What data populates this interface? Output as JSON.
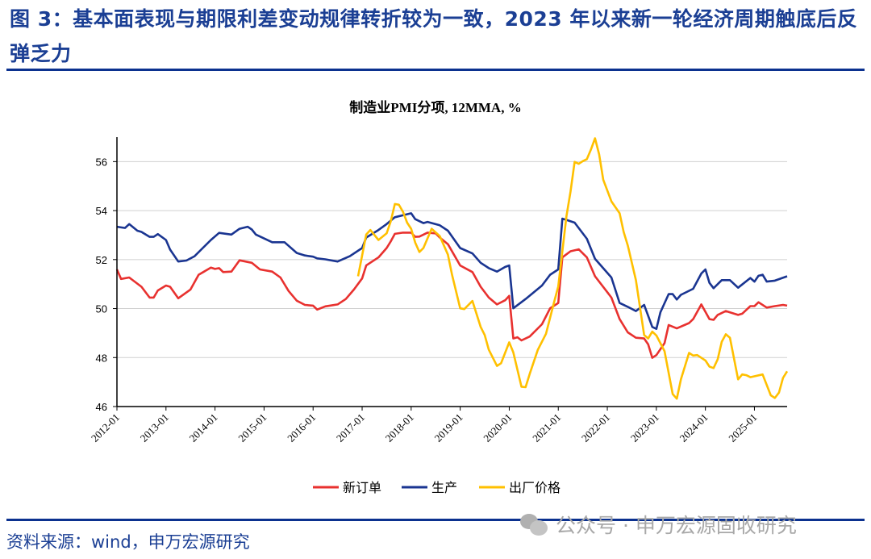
{
  "header": {
    "title": "图  3：基本面表现与期限利差变动规律转折较为一致，2023 年以来新一轮经济周期触底后反弹乏力"
  },
  "footer": {
    "source": "资料来源：wind，申万宏源研究",
    "watermark": "公众号 · 申万宏源固收研究"
  },
  "colors": {
    "title": "#1b3f94",
    "new_orders": "#e8312f",
    "production": "#1a3591",
    "ex_factory_price": "#ffc000"
  },
  "chart_data": {
    "type": "line",
    "title": "制造业PMI分项, 12MMA, %",
    "xlabel": "",
    "ylabel": "",
    "ylim": [
      46,
      57
    ],
    "yticks": [
      46,
      48,
      50,
      52,
      54,
      56
    ],
    "xlim": [
      "2012-01",
      "2025-09"
    ],
    "xticks": [
      "2012-01",
      "2013-01",
      "2014-01",
      "2015-01",
      "2016-01",
      "2017-01",
      "2018-01",
      "2019-01",
      "2020-01",
      "2021-01",
      "2022-01",
      "2023-01",
      "2024-01",
      "2025-01"
    ],
    "grid": "horizontal",
    "legend_position": "bottom",
    "series": [
      {
        "name": "新订单",
        "color": "#e8312f",
        "points": [
          [
            "2012-01",
            51.6
          ],
          [
            "2012-02",
            51.21
          ],
          [
            "2012-04",
            51.27
          ],
          [
            "2012-07",
            50.89
          ],
          [
            "2012-09",
            50.45
          ],
          [
            "2012-10",
            50.45
          ],
          [
            "2012-11",
            50.74
          ],
          [
            "2013-01",
            50.94
          ],
          [
            "2013-02",
            50.89
          ],
          [
            "2013-04",
            50.42
          ],
          [
            "2013-07",
            50.78
          ],
          [
            "2013-09",
            51.38
          ],
          [
            "2013-12",
            51.67
          ],
          [
            "2014-01",
            51.62
          ],
          [
            "2014-02",
            51.65
          ],
          [
            "2014-03",
            51.49
          ],
          [
            "2014-05",
            51.51
          ],
          [
            "2014-07",
            51.97
          ],
          [
            "2014-10",
            51.87
          ],
          [
            "2014-12",
            51.6
          ],
          [
            "2015-03",
            51.51
          ],
          [
            "2015-05",
            51.27
          ],
          [
            "2015-07",
            50.72
          ],
          [
            "2015-09",
            50.32
          ],
          [
            "2015-11",
            50.15
          ],
          [
            "2016-01",
            50.12
          ],
          [
            "2016-02",
            49.96
          ],
          [
            "2016-04",
            50.09
          ],
          [
            "2016-07",
            50.17
          ],
          [
            "2016-09",
            50.39
          ],
          [
            "2016-11",
            50.78
          ],
          [
            "2017-01",
            51.23
          ],
          [
            "2017-02",
            51.76
          ],
          [
            "2017-05",
            52.09
          ],
          [
            "2017-07",
            52.47
          ],
          [
            "2017-08",
            52.74
          ],
          [
            "2017-09",
            53.05
          ],
          [
            "2017-11",
            53.1
          ],
          [
            "2018-01",
            53.1
          ],
          [
            "2018-02",
            52.93
          ],
          [
            "2018-03",
            52.94
          ],
          [
            "2018-05",
            53.1
          ],
          [
            "2018-07",
            53.07
          ],
          [
            "2018-08",
            52.9
          ],
          [
            "2018-10",
            52.63
          ],
          [
            "2019-01",
            51.76
          ],
          [
            "2019-04",
            51.49
          ],
          [
            "2019-06",
            50.89
          ],
          [
            "2019-08",
            50.45
          ],
          [
            "2019-10",
            50.17
          ],
          [
            "2019-12",
            50.34
          ],
          [
            "2020-01",
            50.52
          ],
          [
            "2020-02",
            48.78
          ],
          [
            "2020-03",
            48.83
          ],
          [
            "2020-04",
            48.7
          ],
          [
            "2020-06",
            48.86
          ],
          [
            "2020-09",
            49.36
          ],
          [
            "2020-11",
            50.01
          ],
          [
            "2021-01",
            50.23
          ],
          [
            "2021-02",
            52.09
          ],
          [
            "2021-04",
            52.34
          ],
          [
            "2021-06",
            52.42
          ],
          [
            "2021-08",
            52.09
          ],
          [
            "2021-10",
            51.32
          ],
          [
            "2022-01",
            50.67
          ],
          [
            "2022-02",
            50.45
          ],
          [
            "2022-04",
            49.57
          ],
          [
            "2022-06",
            49.03
          ],
          [
            "2022-08",
            48.81
          ],
          [
            "2022-10",
            48.78
          ],
          [
            "2022-11",
            48.54
          ],
          [
            "2022-12",
            47.99
          ],
          [
            "2023-01",
            48.1
          ],
          [
            "2023-03",
            48.59
          ],
          [
            "2023-04",
            49.33
          ],
          [
            "2023-06",
            49.19
          ],
          [
            "2023-09",
            49.41
          ],
          [
            "2023-10",
            49.57
          ],
          [
            "2023-12",
            50.17
          ],
          [
            "2024-02",
            49.57
          ],
          [
            "2024-03",
            49.54
          ],
          [
            "2024-04",
            49.74
          ],
          [
            "2024-06",
            49.9
          ],
          [
            "2024-09",
            49.74
          ],
          [
            "2024-10",
            49.79
          ],
          [
            "2024-12",
            50.1
          ],
          [
            "2025-01",
            50.1
          ],
          [
            "2025-02",
            50.26
          ],
          [
            "2025-04",
            50.04
          ],
          [
            "2025-06",
            50.1
          ],
          [
            "2025-08",
            50.15
          ],
          [
            "2025-09",
            50.12
          ]
        ]
      },
      {
        "name": "生产",
        "color": "#1a3591",
        "points": [
          [
            "2012-01",
            53.34
          ],
          [
            "2012-03",
            53.29
          ],
          [
            "2012-04",
            53.45
          ],
          [
            "2012-06",
            53.18
          ],
          [
            "2012-07",
            53.13
          ],
          [
            "2012-09",
            52.93
          ],
          [
            "2012-10",
            52.93
          ],
          [
            "2012-11",
            53.04
          ],
          [
            "2013-01",
            52.8
          ],
          [
            "2013-02",
            52.41
          ],
          [
            "2013-04",
            51.92
          ],
          [
            "2013-06",
            51.96
          ],
          [
            "2013-08",
            52.14
          ],
          [
            "2013-10",
            52.47
          ],
          [
            "2013-12",
            52.8
          ],
          [
            "2014-02",
            53.09
          ],
          [
            "2014-05",
            53.02
          ],
          [
            "2014-07",
            53.26
          ],
          [
            "2014-09",
            53.34
          ],
          [
            "2014-10",
            53.23
          ],
          [
            "2014-11",
            53.02
          ],
          [
            "2015-03",
            52.71
          ],
          [
            "2015-06",
            52.71
          ],
          [
            "2015-09",
            52.27
          ],
          [
            "2015-11",
            52.17
          ],
          [
            "2016-01",
            52.12
          ],
          [
            "2016-02",
            52.05
          ],
          [
            "2016-04",
            52.01
          ],
          [
            "2016-07",
            51.92
          ],
          [
            "2016-10",
            52.14
          ],
          [
            "2017-01",
            52.47
          ],
          [
            "2017-02",
            52.9
          ],
          [
            "2017-05",
            53.21
          ],
          [
            "2017-07",
            53.45
          ],
          [
            "2017-09",
            53.73
          ],
          [
            "2018-01",
            53.89
          ],
          [
            "2018-02",
            53.65
          ],
          [
            "2018-04",
            53.49
          ],
          [
            "2018-05",
            53.54
          ],
          [
            "2018-08",
            53.4
          ],
          [
            "2018-10",
            53.18
          ],
          [
            "2019-01",
            52.47
          ],
          [
            "2019-04",
            52.25
          ],
          [
            "2019-06",
            51.87
          ],
          [
            "2019-08",
            51.65
          ],
          [
            "2019-10",
            51.51
          ],
          [
            "2019-12",
            51.7
          ],
          [
            "2020-01",
            51.76
          ],
          [
            "2020-02",
            50.01
          ],
          [
            "2020-05",
            50.39
          ],
          [
            "2020-09",
            50.94
          ],
          [
            "2020-11",
            51.38
          ],
          [
            "2021-01",
            51.6
          ],
          [
            "2021-02",
            53.67
          ],
          [
            "2021-03",
            53.62
          ],
          [
            "2021-05",
            53.51
          ],
          [
            "2021-08",
            52.85
          ],
          [
            "2021-10",
            52.03
          ],
          [
            "2022-02",
            51.27
          ],
          [
            "2022-04",
            50.23
          ],
          [
            "2022-06",
            50.07
          ],
          [
            "2022-08",
            49.9
          ],
          [
            "2022-10",
            50.15
          ],
          [
            "2022-12",
            49.25
          ],
          [
            "2023-01",
            49.17
          ],
          [
            "2023-02",
            49.85
          ],
          [
            "2023-04",
            50.59
          ],
          [
            "2023-05",
            50.59
          ],
          [
            "2023-06",
            50.37
          ],
          [
            "2023-07",
            50.56
          ],
          [
            "2023-10",
            50.81
          ],
          [
            "2023-12",
            51.43
          ],
          [
            "2024-01",
            51.6
          ],
          [
            "2024-02",
            51.05
          ],
          [
            "2024-03",
            50.83
          ],
          [
            "2024-05",
            51.16
          ],
          [
            "2024-07",
            51.16
          ],
          [
            "2024-09",
            50.85
          ],
          [
            "2024-12",
            51.25
          ],
          [
            "2025-01",
            51.1
          ],
          [
            "2025-02",
            51.34
          ],
          [
            "2025-03",
            51.38
          ],
          [
            "2025-04",
            51.1
          ],
          [
            "2025-06",
            51.14
          ],
          [
            "2025-09",
            51.32
          ]
        ]
      },
      {
        "name": "出厂价格",
        "color": "#ffc000",
        "points": [
          [
            "2016-12",
            51.32
          ],
          [
            "2017-02",
            53.02
          ],
          [
            "2017-03",
            53.21
          ],
          [
            "2017-05",
            52.8
          ],
          [
            "2017-07",
            53.07
          ],
          [
            "2017-08",
            53.56
          ],
          [
            "2017-09",
            54.27
          ],
          [
            "2017-10",
            54.24
          ],
          [
            "2017-11",
            53.95
          ],
          [
            "2017-12",
            53.51
          ],
          [
            "2018-01",
            53.26
          ],
          [
            "2018-02",
            52.69
          ],
          [
            "2018-03",
            52.31
          ],
          [
            "2018-04",
            52.47
          ],
          [
            "2018-06",
            53.26
          ],
          [
            "2018-08",
            52.96
          ],
          [
            "2018-10",
            52.2
          ],
          [
            "2018-11",
            51.38
          ],
          [
            "2019-01",
            50.01
          ],
          [
            "2019-02",
            49.98
          ],
          [
            "2019-04",
            50.31
          ],
          [
            "2019-06",
            49.25
          ],
          [
            "2019-07",
            48.92
          ],
          [
            "2019-08",
            48.32
          ],
          [
            "2019-10",
            47.66
          ],
          [
            "2019-11",
            47.77
          ],
          [
            "2020-01",
            48.62
          ],
          [
            "2020-02",
            48.21
          ],
          [
            "2020-04",
            46.81
          ],
          [
            "2020-05",
            46.79
          ],
          [
            "2020-06",
            47.33
          ],
          [
            "2020-08",
            48.32
          ],
          [
            "2020-10",
            48.97
          ],
          [
            "2020-12",
            50.28
          ],
          [
            "2021-01",
            50.9
          ],
          [
            "2021-03",
            53.78
          ],
          [
            "2021-04",
            54.77
          ],
          [
            "2021-05",
            55.99
          ],
          [
            "2021-06",
            55.91
          ],
          [
            "2021-07",
            56.02
          ],
          [
            "2021-08",
            56.1
          ],
          [
            "2021-09",
            56.5
          ],
          [
            "2021-10",
            56.95
          ],
          [
            "2021-11",
            56.3
          ],
          [
            "2021-12",
            55.26
          ],
          [
            "2022-02",
            54.38
          ],
          [
            "2022-04",
            53.89
          ],
          [
            "2022-05",
            53.13
          ],
          [
            "2022-06",
            52.58
          ],
          [
            "2022-08",
            51.16
          ],
          [
            "2022-10",
            48.92
          ],
          [
            "2022-11",
            48.78
          ],
          [
            "2022-12",
            49.06
          ],
          [
            "2023-01",
            48.9
          ],
          [
            "2023-03",
            48.26
          ],
          [
            "2023-05",
            46.51
          ],
          [
            "2023-06",
            46.32
          ],
          [
            "2023-07",
            47.11
          ],
          [
            "2023-09",
            48.19
          ],
          [
            "2023-10",
            48.08
          ],
          [
            "2023-11",
            48.1
          ],
          [
            "2024-01",
            47.88
          ],
          [
            "2024-02",
            47.63
          ],
          [
            "2024-03",
            47.57
          ],
          [
            "2024-04",
            47.93
          ],
          [
            "2024-05",
            48.64
          ],
          [
            "2024-06",
            48.95
          ],
          [
            "2024-07",
            48.81
          ],
          [
            "2024-09",
            47.11
          ],
          [
            "2024-10",
            47.31
          ],
          [
            "2024-11",
            47.28
          ],
          [
            "2024-12",
            47.2
          ],
          [
            "2025-03",
            47.31
          ],
          [
            "2025-05",
            46.46
          ],
          [
            "2025-06",
            46.35
          ],
          [
            "2025-07",
            46.57
          ],
          [
            "2025-08",
            47.17
          ],
          [
            "2025-09",
            47.44
          ]
        ]
      }
    ]
  }
}
